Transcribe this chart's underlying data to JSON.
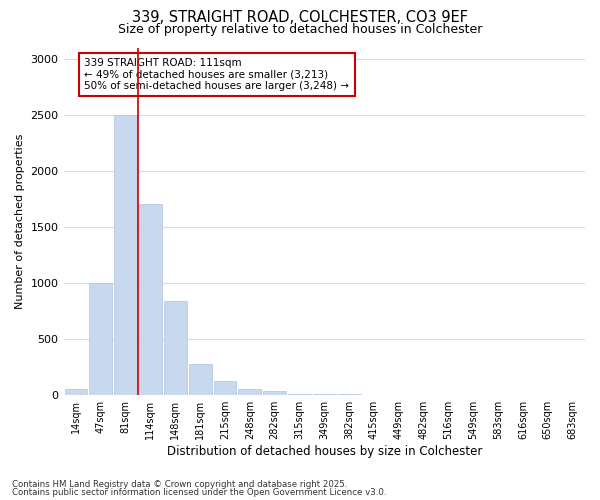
{
  "title_line1": "339, STRAIGHT ROAD, COLCHESTER, CO3 9EF",
  "title_line2": "Size of property relative to detached houses in Colchester",
  "xlabel": "Distribution of detached houses by size in Colchester",
  "ylabel": "Number of detached properties",
  "categories": [
    "14sqm",
    "47sqm",
    "81sqm",
    "114sqm",
    "148sqm",
    "181sqm",
    "215sqm",
    "248sqm",
    "282sqm",
    "315sqm",
    "349sqm",
    "382sqm",
    "415sqm",
    "449sqm",
    "482sqm",
    "516sqm",
    "549sqm",
    "583sqm",
    "616sqm",
    "650sqm",
    "683sqm"
  ],
  "values": [
    50,
    1000,
    2500,
    1700,
    840,
    270,
    120,
    50,
    30,
    10,
    3,
    2,
    1,
    1,
    0,
    0,
    0,
    0,
    0,
    0,
    0
  ],
  "bar_color": "#c8d8ef",
  "bar_edge_color": "#b0c4de",
  "red_line_x": 2.5,
  "annotation_text_line1": "339 STRAIGHT ROAD: 111sqm",
  "annotation_text_line2": "← 49% of detached houses are smaller (3,213)",
  "annotation_text_line3": "50% of semi-detached houses are larger (3,248) →",
  "annotation_box_facecolor": "#ffffff",
  "annotation_box_edgecolor": "#cc0000",
  "red_line_color": "#cc0000",
  "background_color": "#ffffff",
  "plot_background": "#ffffff",
  "grid_color": "#d0ddf0",
  "ylim": [
    0,
    3100
  ],
  "yticks": [
    0,
    500,
    1000,
    1500,
    2000,
    2500,
    3000
  ],
  "footer_line1": "Contains HM Land Registry data © Crown copyright and database right 2025.",
  "footer_line2": "Contains public sector information licensed under the Open Government Licence v3.0."
}
